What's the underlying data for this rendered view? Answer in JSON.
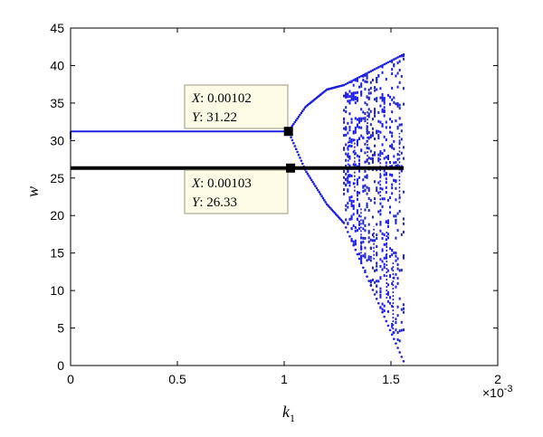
{
  "chart_data": {
    "type": "scatter",
    "title": "",
    "xlabel": "k",
    "xlabel_subscript": "1",
    "ylabel": "w",
    "x_multiplier_label": "×10",
    "x_multiplier_exponent": "-3",
    "xlim": [
      0,
      2
    ],
    "ylim": [
      0,
      45
    ],
    "x_ticks": [
      "0",
      "0.5",
      "1",
      "1.5",
      "2"
    ],
    "y_ticks": [
      "0",
      "5",
      "10",
      "15",
      "20",
      "25",
      "30",
      "35",
      "40",
      "45"
    ],
    "grid": false,
    "legend": "none",
    "colors": {
      "series": "#1f1fe0",
      "marker": "#000000",
      "box_fill": "#fbfbe6",
      "box_border": "#9a9a80"
    },
    "series": [
      {
        "values_description_note": "",
        "segments": [
          {
            "kind": "stable",
            "x": [
              0.0,
              1.02
            ],
            "y": [
              31.22,
              31.22
            ]
          },
          {
            "kind": "branch_upper",
            "x": [
              1.02,
              1.1,
              1.2,
              1.28
            ],
            "y": [
              31.22,
              34.5,
              36.8,
              37.4
            ]
          },
          {
            "kind": "branch_lower",
            "x": [
              1.02,
              1.1,
              1.2,
              1.28
            ],
            "y": [
              31.22,
              26.0,
              21.5,
              19.0
            ]
          },
          {
            "kind": "chaos_top",
            "x": [
              1.28,
              1.56
            ],
            "y": [
              37.4,
              41.5
            ]
          },
          {
            "kind": "chaos_bottom",
            "x": [
              1.28,
              1.56
            ],
            "y": [
              19.0,
              0.5
            ]
          }
        ]
      },
      {
        "kind": "line",
        "x": [
          0.0,
          1.56
        ],
        "y": [
          26.33,
          26.33
        ]
      }
    ],
    "datatips": [
      {
        "x_label": "X",
        "x_value": ": 0.00102",
        "y_label": "Y",
        "y_value": ": 31.22",
        "x": 1.02,
        "y": 31.22
      },
      {
        "x_label": "X",
        "x_value": ": 0.00103",
        "y_label": "Y",
        "y_value": ": 26.33",
        "x": 1.03,
        "y": 26.33
      }
    ]
  }
}
